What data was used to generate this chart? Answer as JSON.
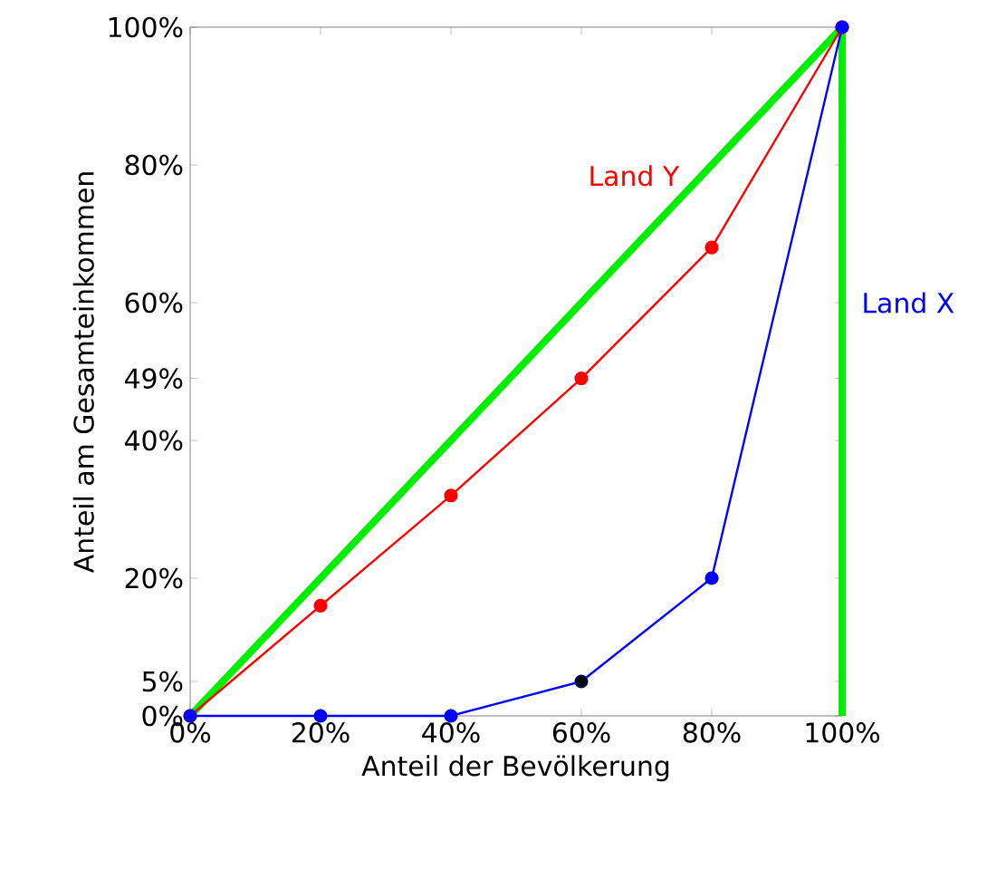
{
  "chart_data": {
    "type": "line",
    "xlabel": "Anteil der Bevölkerung",
    "ylabel": "Anteil am Gesamteinkommen",
    "x": [
      0,
      20,
      40,
      60,
      80,
      100
    ],
    "series": [
      {
        "x": [
          0,
          100
        ],
        "values": [
          0,
          100
        ],
        "color": "#00ee00"
      },
      {
        "name": "Land Y",
        "color": "#ff0000",
        "values": [
          0,
          16,
          32,
          49,
          68,
          100
        ],
        "marker": "circle"
      },
      {
        "name": "Land X",
        "color": "#0000ff",
        "values": [
          0,
          0,
          0,
          5,
          20,
          100
        ],
        "marker": "circle"
      },
      {
        "type": "scatter",
        "x": [
          60
        ],
        "values": [
          5
        ],
        "color": "#000000",
        "marker": "circle"
      }
    ],
    "ref_lines": [
      {
        "axis": "x",
        "value": 100,
        "color": "#00ee00"
      }
    ],
    "xlim": [
      0,
      100
    ],
    "ylim": [
      0,
      100
    ],
    "xticks": [
      {
        "value": 0,
        "label": "0%"
      },
      {
        "value": 20,
        "label": "20%"
      },
      {
        "value": 40,
        "label": "40%"
      },
      {
        "value": 60,
        "label": "60%"
      },
      {
        "value": 80,
        "label": "80%"
      },
      {
        "value": 100,
        "label": "100%"
      }
    ],
    "yticks": [
      {
        "value": 0,
        "label": "0%"
      },
      {
        "value": 5,
        "label": "5%"
      },
      {
        "value": 20,
        "label": "20%"
      },
      {
        "value": 40,
        "label": "40%"
      },
      {
        "value": 49,
        "label": "49%"
      },
      {
        "value": 60,
        "label": "60%"
      },
      {
        "value": 80,
        "label": "80%"
      },
      {
        "value": 100,
        "label": "100%"
      }
    ],
    "line_style": "solid"
  }
}
